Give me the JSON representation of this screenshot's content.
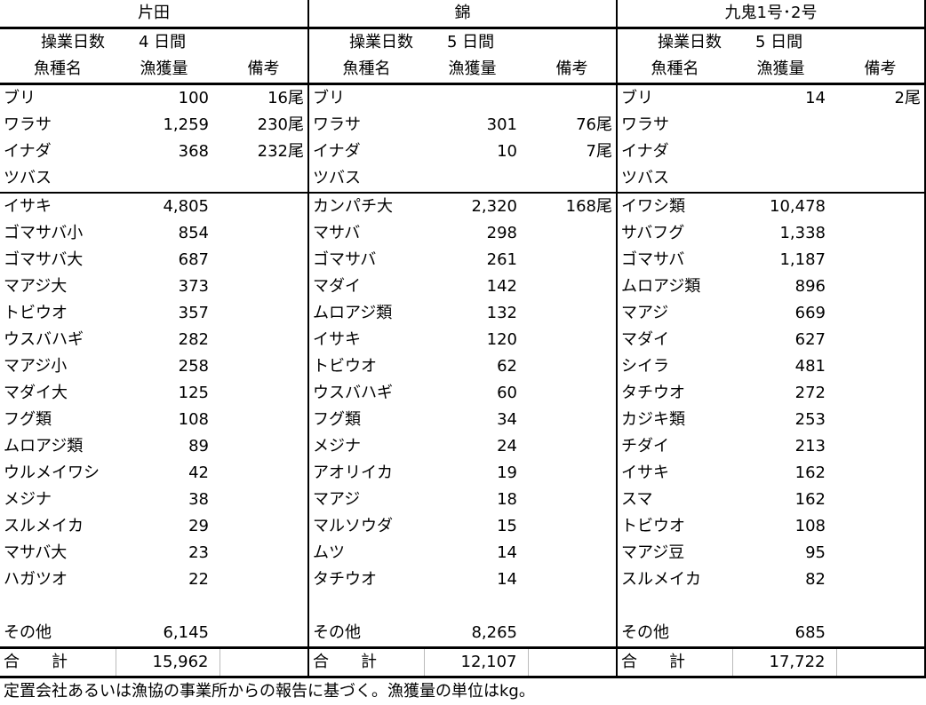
{
  "header_labels": {
    "days": "操業日数",
    "fish": "魚種名",
    "catch": "漁獲量",
    "note": "備考",
    "other": "その他",
    "total": "合　　計"
  },
  "sections": [
    {
      "name": "片田",
      "days": "4 日間",
      "group1": [
        [
          "ブリ",
          "100",
          "16尾"
        ],
        [
          "ワラサ",
          "1,259",
          "230尾"
        ],
        [
          "イナダ",
          "368",
          "232尾"
        ],
        [
          "ツバス",
          "",
          ""
        ]
      ],
      "group2": [
        [
          "イサキ",
          "4,805",
          ""
        ],
        [
          "ゴマサバ小",
          "854",
          ""
        ],
        [
          "ゴマサバ大",
          "687",
          ""
        ],
        [
          "マアジ大",
          "373",
          ""
        ],
        [
          "トビウオ",
          "357",
          ""
        ],
        [
          "ウスバハギ",
          "282",
          ""
        ],
        [
          "マアジ小",
          "258",
          ""
        ],
        [
          "マダイ大",
          "125",
          ""
        ],
        [
          "フグ類",
          "108",
          ""
        ],
        [
          "ムロアジ類",
          "89",
          ""
        ],
        [
          "ウルメイワシ",
          "42",
          ""
        ],
        [
          "メジナ",
          "38",
          ""
        ],
        [
          "スルメイカ",
          "29",
          ""
        ],
        [
          "マサバ大",
          "23",
          ""
        ],
        [
          "ハガツオ",
          "22",
          ""
        ]
      ],
      "other": "6,145",
      "total": "15,962"
    },
    {
      "name": "錦",
      "days": "5 日間",
      "group1": [
        [
          "ブリ",
          "",
          ""
        ],
        [
          "ワラサ",
          "301",
          "76尾"
        ],
        [
          "イナダ",
          "10",
          "7尾"
        ],
        [
          "ツバス",
          "",
          ""
        ]
      ],
      "group2": [
        [
          "カンパチ大",
          "2,320",
          "168尾"
        ],
        [
          "マサバ",
          "298",
          ""
        ],
        [
          "ゴマサバ",
          "261",
          ""
        ],
        [
          "マダイ",
          "142",
          ""
        ],
        [
          "ムロアジ類",
          "132",
          ""
        ],
        [
          "イサキ",
          "120",
          ""
        ],
        [
          "トビウオ",
          "62",
          ""
        ],
        [
          "ウスバハギ",
          "60",
          ""
        ],
        [
          "フグ類",
          "34",
          ""
        ],
        [
          "メジナ",
          "24",
          ""
        ],
        [
          "アオリイカ",
          "19",
          ""
        ],
        [
          "マアジ",
          "18",
          ""
        ],
        [
          "マルソウダ",
          "15",
          ""
        ],
        [
          "ムツ",
          "14",
          ""
        ],
        [
          "タチウオ",
          "14",
          ""
        ]
      ],
      "other": "8,265",
      "total": "12,107"
    },
    {
      "name": "九鬼1号･2号",
      "days": "5 日間",
      "group1": [
        [
          "ブリ",
          "14",
          "2尾"
        ],
        [
          "ワラサ",
          "",
          ""
        ],
        [
          "イナダ",
          "",
          ""
        ],
        [
          "ツバス",
          "",
          ""
        ]
      ],
      "group2": [
        [
          "イワシ類",
          "10,478",
          ""
        ],
        [
          "サバフグ",
          "1,338",
          ""
        ],
        [
          "ゴマサバ",
          "1,187",
          ""
        ],
        [
          "ムロアジ類",
          "896",
          ""
        ],
        [
          "マアジ",
          "669",
          ""
        ],
        [
          "マダイ",
          "627",
          ""
        ],
        [
          "シイラ",
          "481",
          ""
        ],
        [
          "タチウオ",
          "272",
          ""
        ],
        [
          "カジキ類",
          "253",
          ""
        ],
        [
          "チダイ",
          "213",
          ""
        ],
        [
          "イサキ",
          "162",
          ""
        ],
        [
          "スマ",
          "162",
          ""
        ],
        [
          "トビウオ",
          "108",
          ""
        ],
        [
          "マアジ豆",
          "95",
          ""
        ],
        [
          "スルメイカ",
          "82",
          ""
        ]
      ],
      "other": "685",
      "total": "17,722"
    }
  ],
  "footnote": "定置会社あるいは漁協の事業所からの報告に基づく。漁獲量の単位はkg。"
}
